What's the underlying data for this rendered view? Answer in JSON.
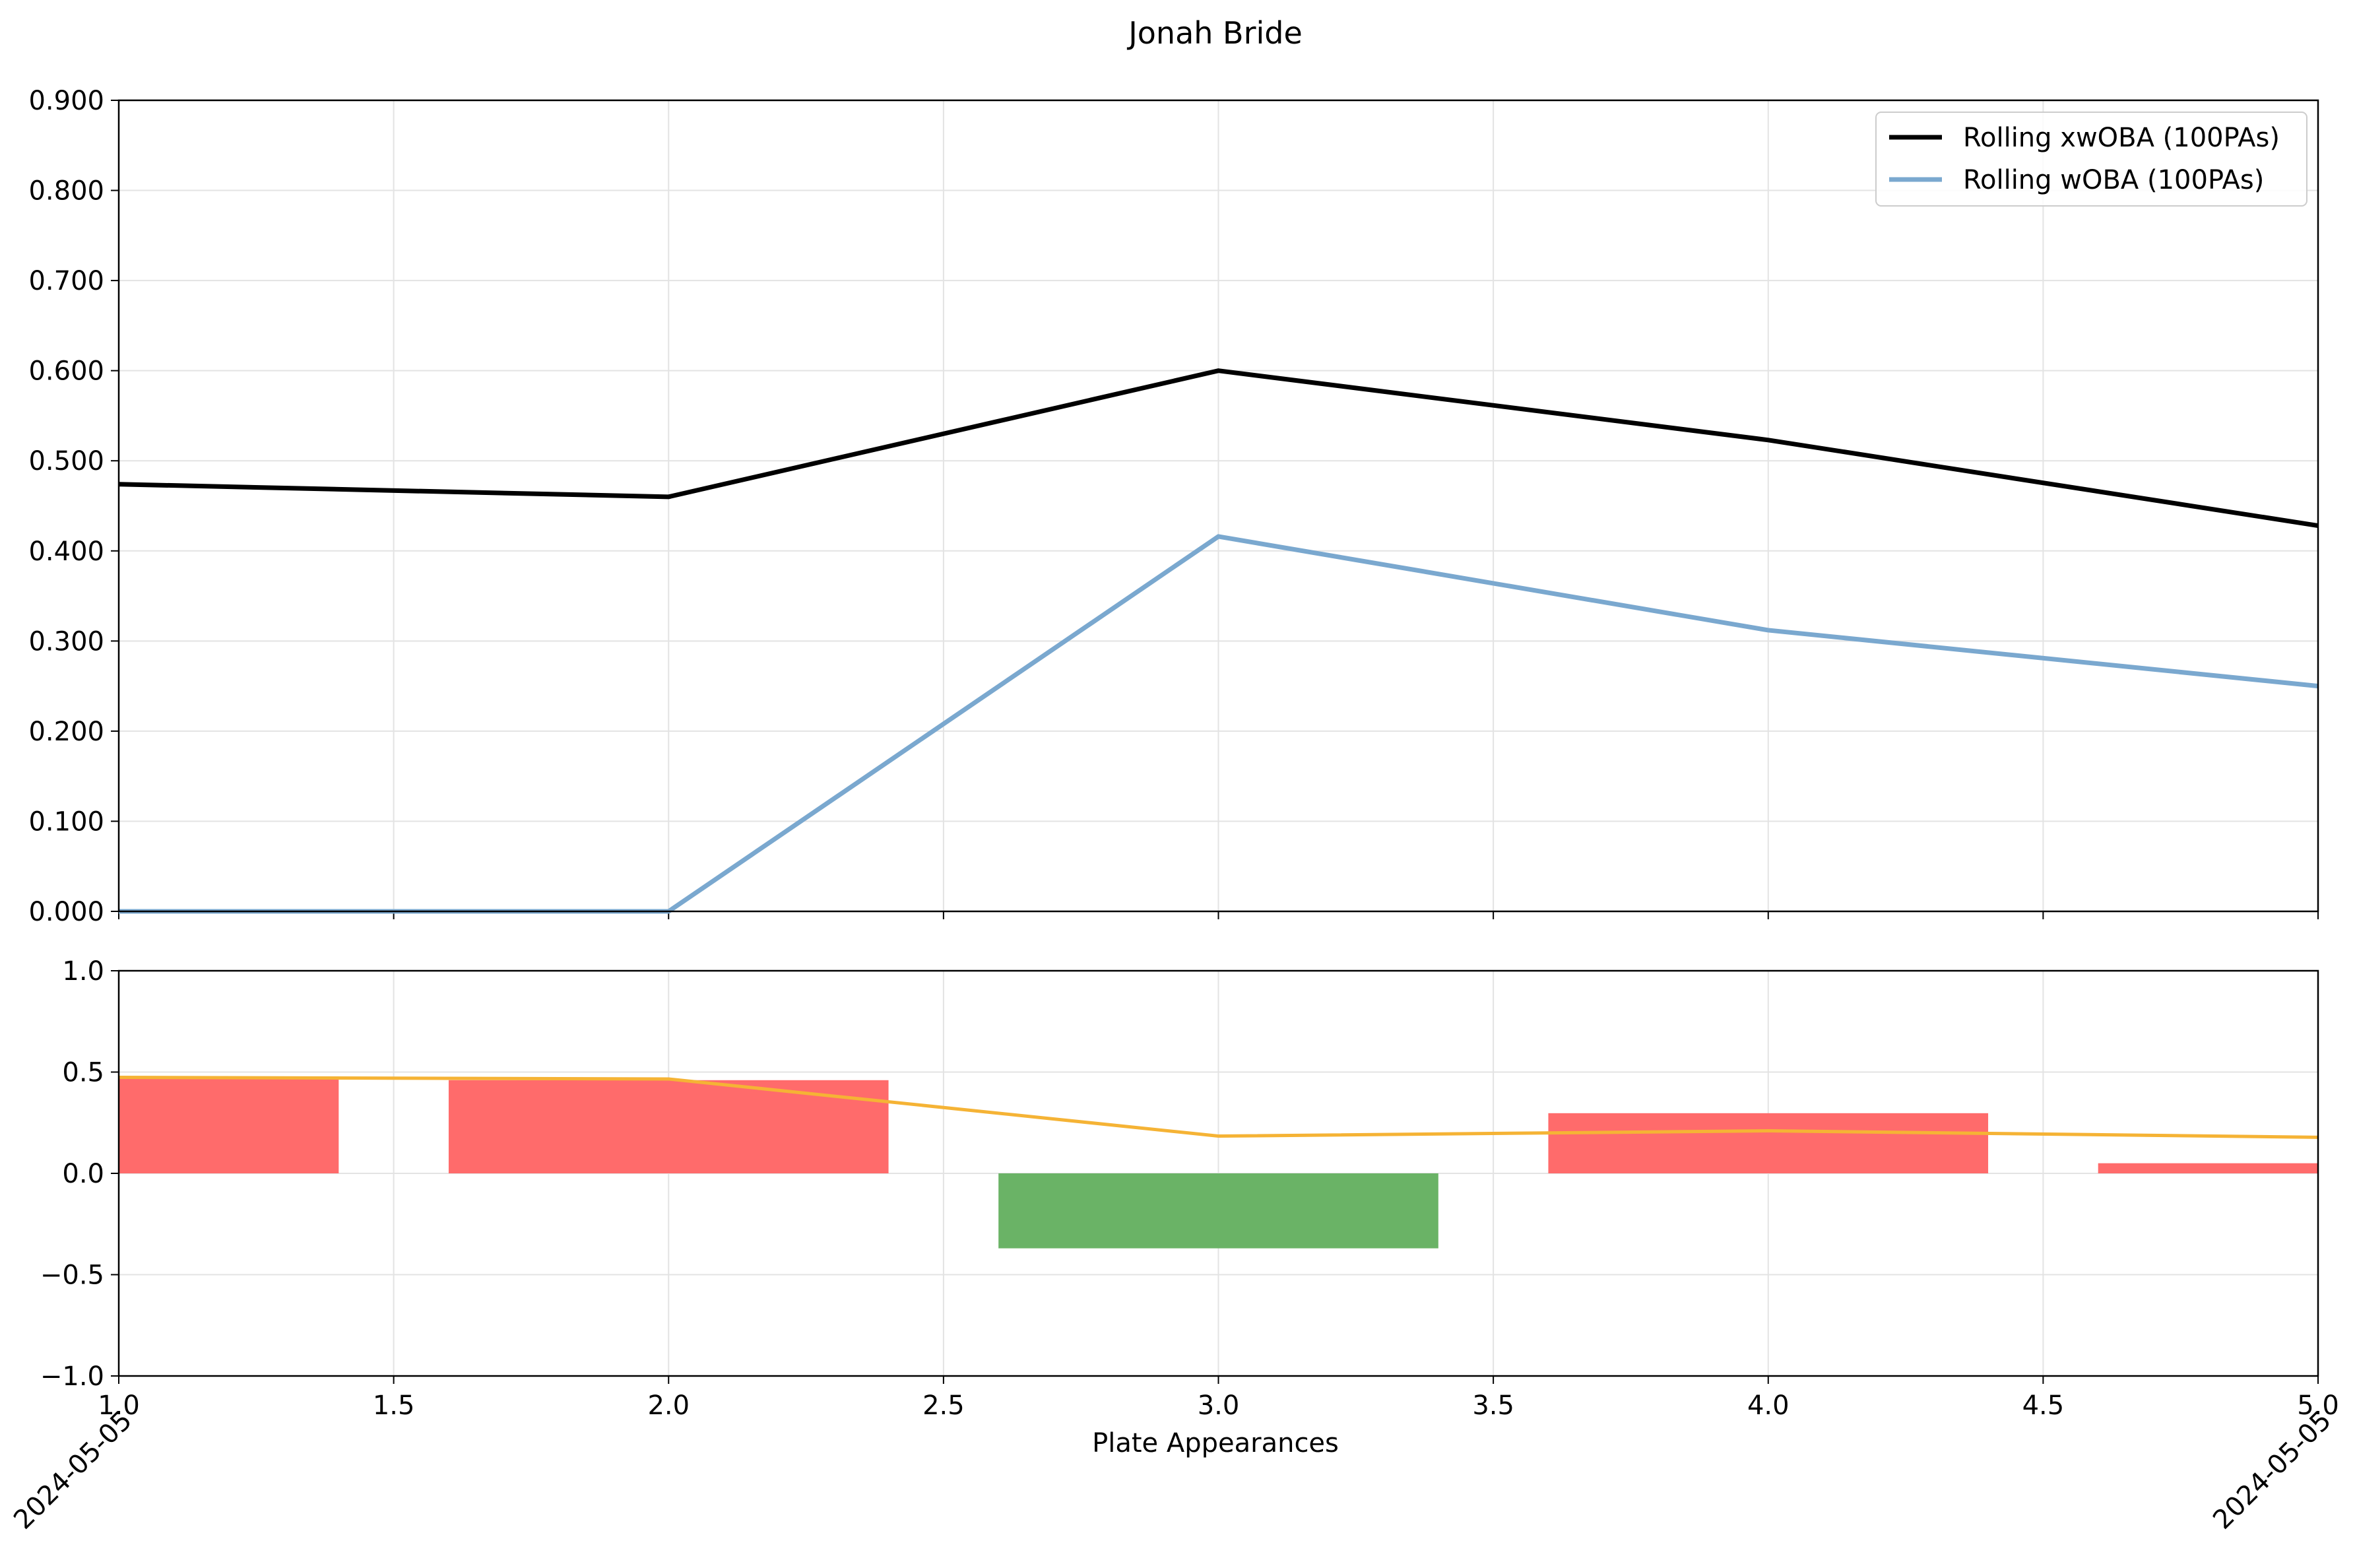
{
  "chart_data": [
    {
      "type": "line",
      "title": "Jonah Bride",
      "xlabel": "",
      "ylabel": "",
      "x": [
        1,
        2,
        3,
        4,
        5
      ],
      "xlim": [
        1.0,
        5.0
      ],
      "ylim": [
        0.0,
        0.9
      ],
      "xticks": [
        "1.0",
        "1.5",
        "2.0",
        "2.5",
        "3.0",
        "3.5",
        "4.0",
        "4.5",
        "5.0"
      ],
      "yticks": [
        "0.000",
        "0.100",
        "0.200",
        "0.300",
        "0.400",
        "0.500",
        "0.600",
        "0.700",
        "0.800",
        "0.900"
      ],
      "grid": true,
      "legend": "top-right",
      "series": [
        {
          "name": "Rolling xwOBA (100PAs)",
          "color": "#000000",
          "values": [
            0.474,
            0.46,
            0.6,
            0.523,
            0.428
          ]
        },
        {
          "name": "Rolling wOBA (100PAs)",
          "color": "#7aa8cf",
          "values": [
            0.0,
            0.0,
            0.416,
            0.312,
            0.25
          ]
        }
      ]
    },
    {
      "type": "bar",
      "xlabel": "Plate Appearances",
      "ylabel": "",
      "x": [
        1,
        2,
        3,
        4,
        5
      ],
      "xlim": [
        1.0,
        5.0
      ],
      "ylim": [
        -1.0,
        1.0
      ],
      "xticks": [
        "1.0",
        "1.5",
        "2.0",
        "2.5",
        "3.0",
        "3.5",
        "4.0",
        "4.5",
        "5.0"
      ],
      "yticks": [
        "−1.0",
        "−0.5",
        "0.0",
        "0.5",
        "1.0"
      ],
      "date_labels": [
        "2024-05-05",
        "2024-05-05"
      ],
      "grid": true,
      "bar_width": 0.8,
      "bar_values": [
        0.474,
        0.46,
        -0.37,
        0.297,
        0.05
      ],
      "positive_color": "#ff6b6b",
      "negative_color": "#6ab366",
      "line": {
        "color": "#f5b335",
        "values": [
          0.474,
          0.466,
          0.184,
          0.21,
          0.178
        ]
      }
    }
  ]
}
